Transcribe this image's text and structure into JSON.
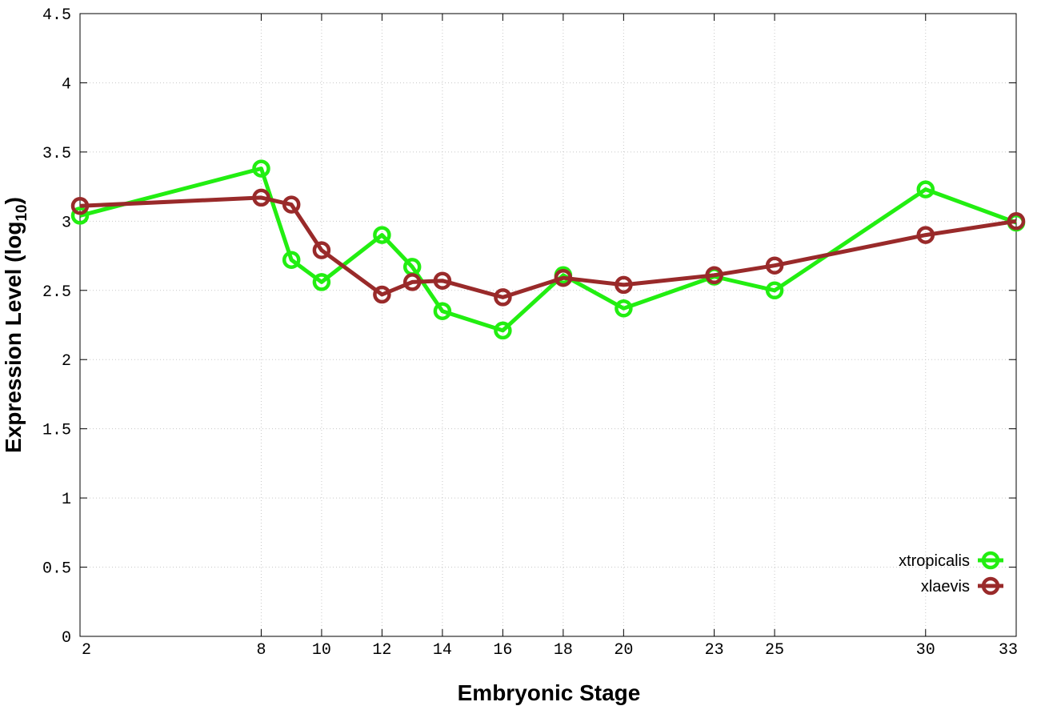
{
  "chart_data": {
    "type": "line",
    "xlabel": "Embryonic Stage",
    "ylabel": "Expression Level (log",
    "ylabel_sub": "10",
    "ylabel_end": ")",
    "x_ticks": [
      2,
      8,
      10,
      12,
      14,
      16,
      18,
      20,
      23,
      25,
      30,
      33
    ],
    "y_ticks": [
      "0",
      "0.5",
      "1",
      "1.5",
      "2",
      "2.5",
      "3",
      "3.5",
      "4",
      "4.5"
    ],
    "xlim": [
      2,
      33
    ],
    "ylim": [
      0,
      4.5
    ],
    "grid": true,
    "legend_position": "bottom-right",
    "series": [
      {
        "name": "xtropicalis",
        "color": "#22ee11",
        "x": [
          2,
          8,
          9,
          10,
          12,
          13,
          14,
          16,
          18,
          20,
          23,
          25,
          30,
          33
        ],
        "y": [
          3.04,
          3.38,
          2.72,
          2.56,
          2.9,
          2.67,
          2.35,
          2.21,
          2.61,
          2.37,
          2.6,
          2.5,
          3.23,
          2.99
        ]
      },
      {
        "name": "xlaevis",
        "color": "#992a2a",
        "x": [
          2,
          8,
          9,
          10,
          12,
          13,
          14,
          16,
          18,
          20,
          23,
          25,
          30,
          33
        ],
        "y": [
          3.11,
          3.17,
          3.12,
          2.79,
          2.47,
          2.56,
          2.57,
          2.45,
          2.59,
          2.54,
          2.61,
          2.68,
          2.9,
          3.0
        ]
      }
    ]
  }
}
